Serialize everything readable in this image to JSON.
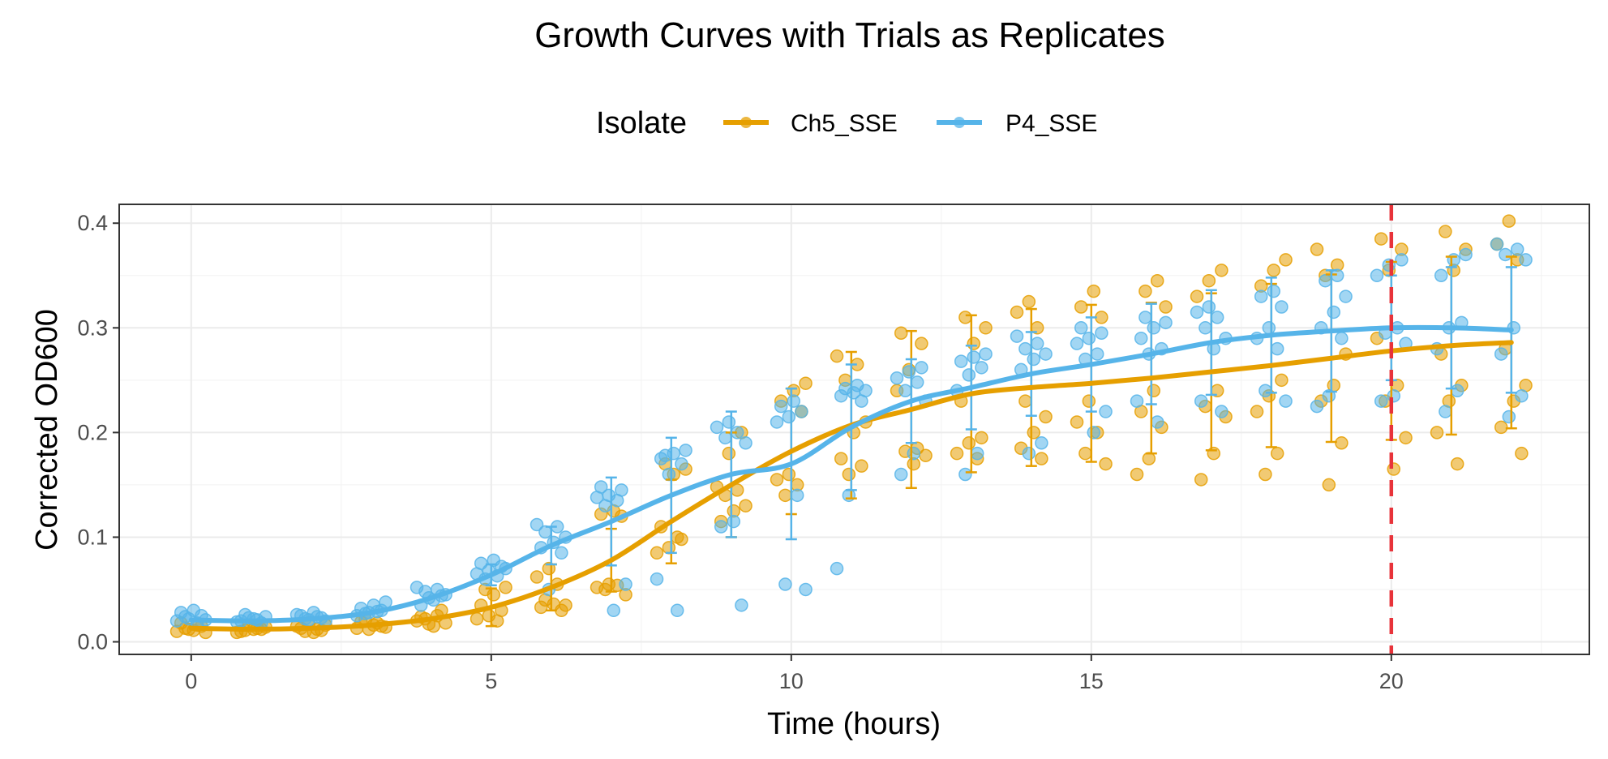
{
  "chart_data": {
    "type": "line",
    "title": "Growth Curves with Trials as Replicates",
    "xlabel": "Time (hours)",
    "ylabel": "Corrected OD600",
    "xlim": [
      -1.2,
      23.3
    ],
    "ylim": [
      -0.012,
      0.418
    ],
    "x_ticks": [
      0,
      5,
      10,
      15,
      20
    ],
    "x_tick_labels": [
      "0",
      "5",
      "10",
      "15",
      "20"
    ],
    "y_ticks": [
      0.0,
      0.1,
      0.2,
      0.3,
      0.4
    ],
    "y_tick_labels": [
      "0.0",
      "0.1",
      "0.2",
      "0.3",
      "0.4"
    ],
    "grid": true,
    "legend": {
      "title": "Isolate",
      "position": "top"
    },
    "vline": {
      "x": 20,
      "color": "#e8333a",
      "style": "dashed"
    },
    "x": [
      0,
      1,
      2,
      3,
      4,
      5,
      6,
      7,
      8,
      9,
      10,
      11,
      12,
      13,
      14,
      15,
      16,
      17,
      18,
      19,
      20,
      21,
      22
    ],
    "series": [
      {
        "name": "Ch5_SSE",
        "color": "#e69f00",
        "mean": [
          0.013,
          0.012,
          0.013,
          0.016,
          0.022,
          0.033,
          0.052,
          0.078,
          0.115,
          0.15,
          0.182,
          0.207,
          0.222,
          0.237,
          0.243,
          0.247,
          0.252,
          0.258,
          0.264,
          0.271,
          0.278,
          0.283,
          0.286
        ],
        "error_bar": [
          null,
          null,
          null,
          null,
          null,
          0.018,
          0.022,
          0.03,
          0.04,
          0.05,
          0.06,
          0.07,
          0.075,
          0.075,
          0.075,
          0.075,
          0.072,
          0.075,
          0.078,
          0.08,
          0.085,
          0.085,
          0.082
        ],
        "points": [
          [
            0.01,
            0.012,
            0.015,
            0.018,
            0.011,
            0.009,
            0.013,
            0.016
          ],
          [
            0.01,
            0.012,
            0.014,
            0.011,
            0.013,
            0.009,
            0.016,
            0.012
          ],
          [
            0.01,
            0.012,
            0.015,
            0.018,
            0.011,
            0.013,
            0.009,
            0.016
          ],
          [
            0.012,
            0.015,
            0.019,
            0.016,
            0.014,
            0.022,
            0.018,
            0.013
          ],
          [
            0.015,
            0.018,
            0.022,
            0.025,
            0.02,
            0.017,
            0.03,
            0.024
          ],
          [
            0.02,
            0.022,
            0.025,
            0.03,
            0.035,
            0.045,
            0.052,
            0.05
          ],
          [
            0.03,
            0.033,
            0.036,
            0.035,
            0.04,
            0.055,
            0.062,
            0.07
          ],
          [
            0.045,
            0.05,
            0.054,
            0.052,
            0.055,
            0.12,
            0.122,
            0.125
          ],
          [
            0.085,
            0.09,
            0.098,
            0.11,
            0.16,
            0.165,
            0.17,
            0.1
          ],
          [
            0.115,
            0.125,
            0.13,
            0.14,
            0.145,
            0.148,
            0.18,
            0.2
          ],
          [
            0.14,
            0.15,
            0.155,
            0.16,
            0.22,
            0.23,
            0.24,
            0.247
          ],
          [
            0.16,
            0.168,
            0.175,
            0.2,
            0.21,
            0.25,
            0.265,
            0.273
          ],
          [
            0.17,
            0.178,
            0.182,
            0.185,
            0.24,
            0.26,
            0.285,
            0.295
          ],
          [
            0.175,
            0.18,
            0.19,
            0.195,
            0.23,
            0.285,
            0.3,
            0.31
          ],
          [
            0.175,
            0.185,
            0.2,
            0.215,
            0.23,
            0.3,
            0.315,
            0.325
          ],
          [
            0.17,
            0.18,
            0.2,
            0.21,
            0.23,
            0.31,
            0.32,
            0.335
          ],
          [
            0.16,
            0.175,
            0.205,
            0.22,
            0.24,
            0.32,
            0.335,
            0.345
          ],
          [
            0.155,
            0.18,
            0.215,
            0.225,
            0.24,
            0.33,
            0.345,
            0.355
          ],
          [
            0.16,
            0.18,
            0.22,
            0.235,
            0.25,
            0.34,
            0.355,
            0.365
          ],
          [
            0.15,
            0.19,
            0.23,
            0.245,
            0.275,
            0.35,
            0.36,
            0.375
          ],
          [
            0.165,
            0.195,
            0.23,
            0.245,
            0.29,
            0.355,
            0.375,
            0.385
          ],
          [
            0.17,
            0.2,
            0.23,
            0.245,
            0.275,
            0.355,
            0.375,
            0.392
          ],
          [
            0.18,
            0.205,
            0.23,
            0.245,
            0.28,
            0.365,
            0.38,
            0.402
          ]
        ]
      },
      {
        "name": "P4_SSE",
        "color": "#56b4e9",
        "mean": [
          0.021,
          0.02,
          0.022,
          0.028,
          0.042,
          0.064,
          0.092,
          0.115,
          0.14,
          0.16,
          0.17,
          0.205,
          0.23,
          0.243,
          0.256,
          0.265,
          0.275,
          0.286,
          0.293,
          0.297,
          0.3,
          0.3,
          0.298
        ],
        "error_bar": [
          null,
          null,
          null,
          null,
          null,
          0.01,
          0.018,
          0.042,
          0.055,
          0.06,
          0.072,
          0.06,
          0.04,
          0.04,
          0.04,
          0.045,
          0.048,
          0.05,
          0.055,
          0.058,
          0.05,
          0.058,
          0.06
        ],
        "points": [
          [
            0.018,
            0.02,
            0.022,
            0.025,
            0.028,
            0.03,
            0.021,
            0.024
          ],
          [
            0.018,
            0.02,
            0.022,
            0.024,
            0.026,
            0.021,
            0.019,
            0.023
          ],
          [
            0.02,
            0.022,
            0.024,
            0.026,
            0.021,
            0.023,
            0.025,
            0.028
          ],
          [
            0.025,
            0.028,
            0.03,
            0.032,
            0.035,
            0.038,
            0.027,
            0.029
          ],
          [
            0.035,
            0.04,
            0.045,
            0.048,
            0.05,
            0.052,
            0.042,
            0.044
          ],
          [
            0.06,
            0.063,
            0.065,
            0.068,
            0.072,
            0.075,
            0.078,
            0.07
          ],
          [
            0.05,
            0.085,
            0.09,
            0.095,
            0.1,
            0.105,
            0.11,
            0.112
          ],
          [
            0.03,
            0.055,
            0.13,
            0.135,
            0.138,
            0.14,
            0.145,
            0.148
          ],
          [
            0.03,
            0.06,
            0.16,
            0.17,
            0.175,
            0.18,
            0.183,
            0.178
          ],
          [
            0.035,
            0.11,
            0.115,
            0.19,
            0.195,
            0.2,
            0.205,
            0.21
          ],
          [
            0.05,
            0.055,
            0.14,
            0.21,
            0.215,
            0.22,
            0.225,
            0.23
          ],
          [
            0.07,
            0.14,
            0.23,
            0.235,
            0.238,
            0.24,
            0.242,
            0.245
          ],
          [
            0.16,
            0.18,
            0.23,
            0.24,
            0.248,
            0.252,
            0.258,
            0.262
          ],
          [
            0.16,
            0.18,
            0.24,
            0.255,
            0.262,
            0.268,
            0.272,
            0.275
          ],
          [
            0.18,
            0.19,
            0.26,
            0.27,
            0.275,
            0.28,
            0.285,
            0.292
          ],
          [
            0.2,
            0.22,
            0.27,
            0.275,
            0.285,
            0.29,
            0.295,
            0.3
          ],
          [
            0.21,
            0.23,
            0.275,
            0.28,
            0.29,
            0.3,
            0.305,
            0.31
          ],
          [
            0.22,
            0.23,
            0.28,
            0.29,
            0.3,
            0.31,
            0.315,
            0.32
          ],
          [
            0.23,
            0.24,
            0.28,
            0.29,
            0.3,
            0.32,
            0.33,
            0.335
          ],
          [
            0.225,
            0.235,
            0.29,
            0.3,
            0.315,
            0.33,
            0.345,
            0.35
          ],
          [
            0.23,
            0.235,
            0.285,
            0.295,
            0.3,
            0.35,
            0.36,
            0.365
          ],
          [
            0.22,
            0.24,
            0.28,
            0.3,
            0.305,
            0.35,
            0.365,
            0.37
          ],
          [
            0.215,
            0.235,
            0.275,
            0.3,
            0.365,
            0.37,
            0.375,
            0.38
          ]
        ]
      }
    ]
  }
}
